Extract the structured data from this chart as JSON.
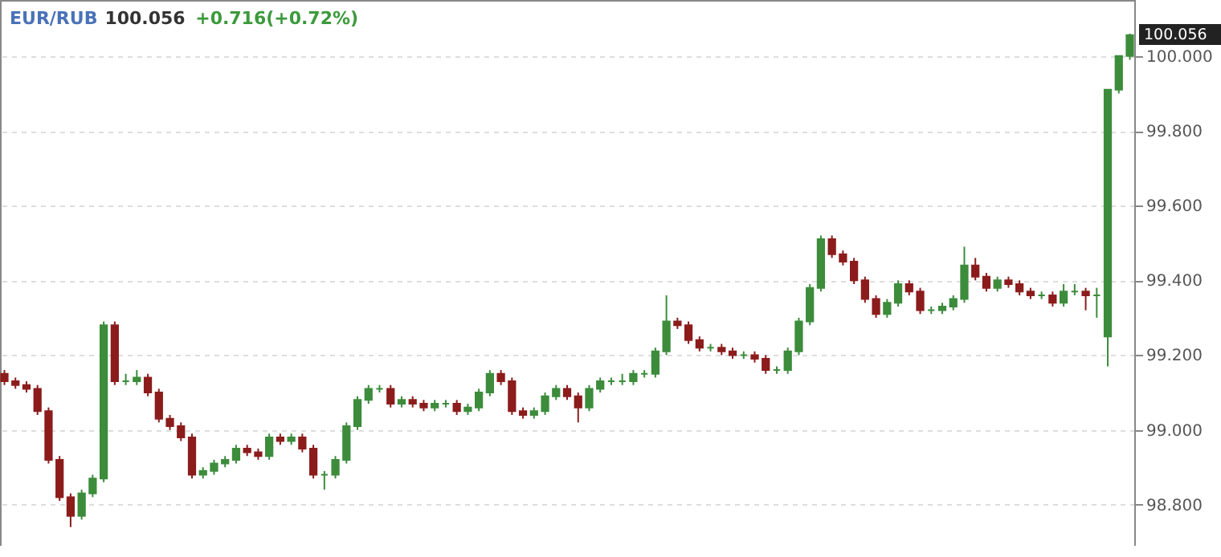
{
  "chart_data": {
    "type": "candlestick",
    "title": "EUR/RUB",
    "annotations": [
      "100.056",
      "+0.716(+0.72%)",
      "100.056"
    ],
    "categories": [
      null,
      null,
      null,
      null,
      null,
      null,
      null,
      null,
      null,
      null,
      null,
      null,
      null,
      null,
      null,
      null,
      null,
      null,
      null,
      null,
      null,
      null,
      null,
      null,
      null,
      null,
      null,
      null,
      null,
      null,
      null,
      null,
      null,
      null,
      null,
      null,
      null,
      null,
      null,
      null,
      null,
      null,
      null,
      null,
      null,
      null,
      null,
      null,
      null,
      null,
      null,
      null,
      null,
      null,
      null,
      null,
      null,
      null,
      null,
      null,
      null,
      null,
      null,
      null,
      null,
      null,
      null,
      null,
      null,
      null,
      null,
      null,
      null,
      null,
      null,
      null,
      null,
      null,
      null,
      null,
      null,
      null,
      null,
      null,
      null,
      null,
      null,
      null,
      null,
      null,
      null,
      null,
      null,
      null,
      null,
      null,
      null,
      null,
      null,
      null,
      null,
      null,
      null
    ],
    "ohlc": [
      [
        99.15,
        99.16,
        99.12,
        99.13
      ],
      [
        99.13,
        99.14,
        99.11,
        99.12
      ],
      [
        99.12,
        99.13,
        99.1,
        99.11
      ],
      [
        99.11,
        99.12,
        99.04,
        99.05
      ],
      [
        99.05,
        99.06,
        98.91,
        98.92
      ],
      [
        98.92,
        98.93,
        98.81,
        98.82
      ],
      [
        98.82,
        98.83,
        98.74,
        98.77
      ],
      [
        98.77,
        98.84,
        98.76,
        98.83
      ],
      [
        98.83,
        98.88,
        98.82,
        98.87
      ],
      [
        98.87,
        99.29,
        98.86,
        99.28
      ],
      [
        99.28,
        99.29,
        99.12,
        99.13
      ],
      [
        99.13,
        99.15,
        99.12,
        99.13
      ],
      [
        99.13,
        99.16,
        99.12,
        99.14
      ],
      [
        99.14,
        99.15,
        99.09,
        99.1
      ],
      [
        99.1,
        99.11,
        99.02,
        99.03
      ],
      [
        99.03,
        99.04,
        99.0,
        99.01
      ],
      [
        99.01,
        99.02,
        98.97,
        98.98
      ],
      [
        98.98,
        98.99,
        98.87,
        98.88
      ],
      [
        98.88,
        98.9,
        98.87,
        98.89
      ],
      [
        98.89,
        98.92,
        98.88,
        98.91
      ],
      [
        98.91,
        98.93,
        98.9,
        98.92
      ],
      [
        98.92,
        98.96,
        98.91,
        98.95
      ],
      [
        98.95,
        98.96,
        98.93,
        98.94
      ],
      [
        98.94,
        98.95,
        98.92,
        98.93
      ],
      [
        98.93,
        98.99,
        98.92,
        98.98
      ],
      [
        98.98,
        98.99,
        98.96,
        98.97
      ],
      [
        98.97,
        98.99,
        98.96,
        98.98
      ],
      [
        98.98,
        98.99,
        98.94,
        98.95
      ],
      [
        98.95,
        98.96,
        98.87,
        98.88
      ],
      [
        98.88,
        98.89,
        98.84,
        98.88
      ],
      [
        98.88,
        98.93,
        98.87,
        98.92
      ],
      [
        98.92,
        99.02,
        98.91,
        99.01
      ],
      [
        99.01,
        99.09,
        99.0,
        99.08
      ],
      [
        99.08,
        99.12,
        99.07,
        99.11
      ],
      [
        99.11,
        99.12,
        99.1,
        99.11
      ],
      [
        99.11,
        99.12,
        99.06,
        99.07
      ],
      [
        99.07,
        99.09,
        99.06,
        99.08
      ],
      [
        99.08,
        99.09,
        99.06,
        99.07
      ],
      [
        99.07,
        99.08,
        99.05,
        99.06
      ],
      [
        99.06,
        99.08,
        99.05,
        99.07
      ],
      [
        99.07,
        99.08,
        99.06,
        99.07
      ],
      [
        99.07,
        99.08,
        99.04,
        99.05
      ],
      [
        99.05,
        99.07,
        99.04,
        99.06
      ],
      [
        99.06,
        99.11,
        99.05,
        99.1
      ],
      [
        99.1,
        99.16,
        99.09,
        99.15
      ],
      [
        99.15,
        99.16,
        99.12,
        99.13
      ],
      [
        99.13,
        99.14,
        99.04,
        99.05
      ],
      [
        99.05,
        99.06,
        99.03,
        99.04
      ],
      [
        99.04,
        99.06,
        99.03,
        99.05
      ],
      [
        99.05,
        99.1,
        99.04,
        99.09
      ],
      [
        99.09,
        99.12,
        99.08,
        99.11
      ],
      [
        99.11,
        99.12,
        99.08,
        99.09
      ],
      [
        99.09,
        99.1,
        99.02,
        99.06
      ],
      [
        99.06,
        99.12,
        99.05,
        99.11
      ],
      [
        99.11,
        99.14,
        99.1,
        99.13
      ],
      [
        99.13,
        99.14,
        99.12,
        99.13
      ],
      [
        99.13,
        99.15,
        99.12,
        99.13
      ],
      [
        99.13,
        99.16,
        99.12,
        99.15
      ],
      [
        99.15,
        99.16,
        99.14,
        99.15
      ],
      [
        99.15,
        99.22,
        99.14,
        99.21
      ],
      [
        99.21,
        99.36,
        99.2,
        99.29
      ],
      [
        99.29,
        99.3,
        99.27,
        99.28
      ],
      [
        99.28,
        99.29,
        99.23,
        99.24
      ],
      [
        99.24,
        99.25,
        99.21,
        99.22
      ],
      [
        99.22,
        99.23,
        99.21,
        99.22
      ],
      [
        99.22,
        99.23,
        99.2,
        99.21
      ],
      [
        99.21,
        99.22,
        99.19,
        99.2
      ],
      [
        99.2,
        99.21,
        99.19,
        99.2
      ],
      [
        99.2,
        99.21,
        99.18,
        99.19
      ],
      [
        99.19,
        99.2,
        99.15,
        99.16
      ],
      [
        99.16,
        99.17,
        99.15,
        99.16
      ],
      [
        99.16,
        99.22,
        99.15,
        99.21
      ],
      [
        99.21,
        99.3,
        99.2,
        99.29
      ],
      [
        99.29,
        99.39,
        99.28,
        99.38
      ],
      [
        99.38,
        99.52,
        99.37,
        99.51
      ],
      [
        99.51,
        99.52,
        99.46,
        99.47
      ],
      [
        99.47,
        99.48,
        99.44,
        99.45
      ],
      [
        99.45,
        99.46,
        99.39,
        99.4
      ],
      [
        99.4,
        99.41,
        99.34,
        99.35
      ],
      [
        99.35,
        99.36,
        99.3,
        99.31
      ],
      [
        99.31,
        99.35,
        99.3,
        99.34
      ],
      [
        99.34,
        99.4,
        99.33,
        99.39
      ],
      [
        99.39,
        99.4,
        99.36,
        99.37
      ],
      [
        99.37,
        99.38,
        99.31,
        99.32
      ],
      [
        99.32,
        99.33,
        99.31,
        99.32
      ],
      [
        99.32,
        99.34,
        99.31,
        99.33
      ],
      [
        99.33,
        99.36,
        99.32,
        99.35
      ],
      [
        99.35,
        99.49,
        99.34,
        99.44
      ],
      [
        99.44,
        99.46,
        99.4,
        99.41
      ],
      [
        99.41,
        99.42,
        99.37,
        99.38
      ],
      [
        99.38,
        99.41,
        99.37,
        99.4
      ],
      [
        99.4,
        99.41,
        99.38,
        99.39
      ],
      [
        99.39,
        99.4,
        99.36,
        99.37
      ],
      [
        99.37,
        99.38,
        99.35,
        99.36
      ],
      [
        99.36,
        99.37,
        99.35,
        99.36
      ],
      [
        99.36,
        99.37,
        99.33,
        99.34
      ],
      [
        99.34,
        99.39,
        99.33,
        99.37
      ],
      [
        99.37,
        99.39,
        99.36,
        99.37
      ],
      [
        99.37,
        99.38,
        99.32,
        99.36
      ],
      [
        99.36,
        99.38,
        99.3,
        99.36
      ],
      [
        99.25,
        99.91,
        99.17,
        99.91
      ],
      [
        99.91,
        100.0,
        99.9,
        100.0
      ],
      [
        100.0,
        100.06,
        99.99,
        100.056
      ]
    ],
    "colors": [
      "#8c1c1c",
      "#8c1c1c",
      "#8c1c1c",
      "#8c1c1c",
      "#8c1c1c",
      "#8c1c1c",
      "#8c1c1c",
      "#3c8c3c",
      "#3c8c3c",
      "#3c8c3c",
      "#8c1c1c",
      "#3c8c3c",
      "#3c8c3c",
      "#8c1c1c",
      "#8c1c1c",
      "#8c1c1c",
      "#8c1c1c",
      "#8c1c1c",
      "#3c8c3c",
      "#3c8c3c",
      "#3c8c3c",
      "#3c8c3c",
      "#8c1c1c",
      "#8c1c1c",
      "#3c8c3c",
      "#8c1c1c",
      "#3c8c3c",
      "#8c1c1c",
      "#8c1c1c",
      "#3c8c3c",
      "#3c8c3c",
      "#3c8c3c",
      "#3c8c3c",
      "#3c8c3c",
      "#3c8c3c",
      "#8c1c1c",
      "#3c8c3c",
      "#8c1c1c",
      "#8c1c1c",
      "#3c8c3c",
      "#3c8c3c",
      "#8c1c1c",
      "#3c8c3c",
      "#3c8c3c",
      "#3c8c3c",
      "#8c1c1c",
      "#8c1c1c",
      "#8c1c1c",
      "#3c8c3c",
      "#3c8c3c",
      "#3c8c3c",
      "#8c1c1c",
      "#8c1c1c",
      "#3c8c3c",
      "#3c8c3c",
      "#3c8c3c",
      "#3c8c3c",
      "#3c8c3c",
      "#3c8c3c",
      "#3c8c3c",
      "#3c8c3c",
      "#8c1c1c",
      "#8c1c1c",
      "#8c1c1c",
      "#3c8c3c",
      "#8c1c1c",
      "#8c1c1c",
      "#3c8c3c",
      "#8c1c1c",
      "#8c1c1c",
      "#3c8c3c",
      "#3c8c3c",
      "#3c8c3c",
      "#3c8c3c",
      "#3c8c3c",
      "#8c1c1c",
      "#8c1c1c",
      "#8c1c1c",
      "#8c1c1c",
      "#8c1c1c",
      "#3c8c3c",
      "#3c8c3c",
      "#8c1c1c",
      "#8c1c1c",
      "#3c8c3c",
      "#3c8c3c",
      "#3c8c3c",
      "#3c8c3c",
      "#8c1c1c",
      "#8c1c1c",
      "#3c8c3c",
      "#8c1c1c",
      "#8c1c1c",
      "#8c1c1c",
      "#3c8c3c",
      "#8c1c1c",
      "#3c8c3c",
      "#3c8c3c",
      "#8c1c1c",
      "#3c8c3c",
      "#3c8c3c",
      "#3c8c3c",
      "#3c8c3c"
    ],
    "ylim": [
      98.69,
      100.15
    ],
    "yticks": [
      {
        "value": 98.8,
        "label": "98.800"
      },
      {
        "value": 99.0,
        "label": "99.000"
      },
      {
        "value": 99.2,
        "label": "99.200"
      },
      {
        "value": 99.4,
        "label": "99.400"
      },
      {
        "value": 99.6,
        "label": "99.600"
      },
      {
        "value": 99.8,
        "label": "99.800"
      },
      {
        "value": 100.0,
        "label": "100.000"
      }
    ],
    "tick_labels": "y",
    "grid": "y"
  }
}
